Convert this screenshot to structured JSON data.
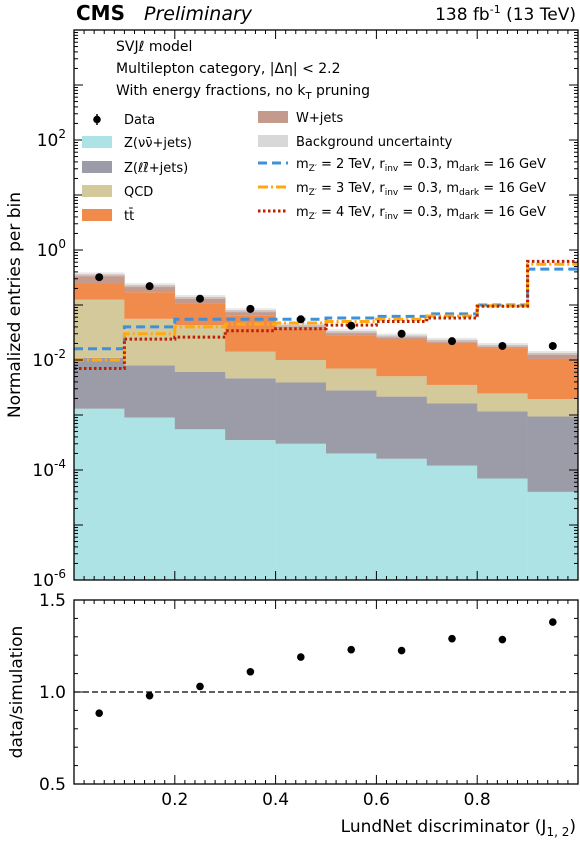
{
  "header": {
    "experiment": "CMS",
    "status": "Preliminary",
    "lumi": "138 fb",
    "lumi_exp": "-1",
    "energy": " (13 TeV)"
  },
  "annotations": [
    "SVJℓ model",
    "Multilepton category, |Δη| < 2.2",
    "With energy fractions, no k",
    "T",
    " pruning"
  ],
  "colors": {
    "znunu": "#aee3e5",
    "zll": "#9c9ca8",
    "qcd": "#d4c99a",
    "ttbar": "#f08b4b",
    "wjets": "#c49a8d",
    "unc": "#d8d8d8",
    "sig2": "#3f90da",
    "sig3": "#ffa90e",
    "sig4": "#bd1f01"
  },
  "legend": {
    "data": "Data",
    "znunu": "Z(νν̄+jets)",
    "zll": "Z(ℓℓ̄+jets)",
    "qcd": "QCD",
    "ttbar": "tt̄",
    "wjets": "W+jets",
    "unc": "Background uncertainty",
    "sig2": "m",
    "sig2_sub": "Z′",
    "sig2_rest": " = 2 TeV, r",
    "sig2_inv": "inv",
    "sig2_rest2": " = 0.3, m",
    "sig2_dark": "dark",
    "sig2_end": " = 16 GeV",
    "sig3": "m",
    "sig3_sub": "Z′",
    "sig3_rest": " = 3 TeV, r",
    "sig3_inv": "inv",
    "sig3_rest2": " = 0.3, m",
    "sig3_dark": "dark",
    "sig3_end": " = 16 GeV",
    "sig4": "m",
    "sig4_sub": "Z′",
    "sig4_rest": " = 4 TeV, r",
    "sig4_inv": "inv",
    "sig4_rest2": " = 0.3, m",
    "sig4_dark": "dark",
    "sig4_end": " = 16 GeV"
  },
  "chart_data": [
    {
      "type": "bar",
      "stacked": true,
      "log_y": true,
      "ylabel": "Normalized entries per bin",
      "ylim": [
        1e-06,
        10000.0
      ],
      "y_ticks": [
        {
          "value": 1e-06,
          "base": "10",
          "exp": "-6"
        },
        {
          "value": 0.0001,
          "base": "10",
          "exp": "-4"
        },
        {
          "value": 0.01,
          "base": "10",
          "exp": "-2"
        },
        {
          "value": 1,
          "base": "10",
          "exp": "0"
        },
        {
          "value": 100,
          "base": "10",
          "exp": "2"
        }
      ],
      "xlim": [
        0,
        1
      ],
      "bin_edges": [
        0,
        0.1,
        0.2,
        0.3,
        0.4,
        0.5,
        0.6,
        0.7,
        0.8,
        0.9,
        1.0
      ],
      "stack_order": [
        "znunu",
        "zll",
        "qcd",
        "ttbar",
        "wjets"
      ],
      "series": [
        {
          "key": "znunu",
          "name": "Z(νν̄+jets)",
          "values": [
            0.0013,
            0.0009,
            0.00055,
            0.00035,
            0.0003,
            0.0002,
            0.00016,
            0.00012,
            7e-05,
            4e-05
          ]
        },
        {
          "key": "zll",
          "name": "Z(ℓℓ̄+jets)",
          "values": [
            0.0096,
            0.0071,
            0.0055,
            0.0043,
            0.0036,
            0.0026,
            0.002,
            0.0015,
            0.0011,
            0.0009
          ]
        },
        {
          "key": "qcd",
          "name": "QCD",
          "values": [
            0.115,
            0.048,
            0.037,
            0.0096,
            0.0061,
            0.0042,
            0.0029,
            0.0019,
            0.0013,
            0.001
          ]
        },
        {
          "key": "ttbar",
          "name": "tt̄",
          "values": [
            0.115,
            0.115,
            0.063,
            0.051,
            0.027,
            0.021,
            0.019,
            0.017,
            0.014,
            0.0085
          ]
        },
        {
          "key": "wjets",
          "name": "W+jets",
          "values": [
            0.12,
            0.059,
            0.034,
            0.015,
            0.0066,
            0.0053,
            0.0038,
            0.0027,
            0.0023,
            0.003
          ]
        }
      ],
      "signals": [
        {
          "key": "sig2",
          "name": "m_Z′ = 2 TeV, r_inv = 0.3, m_dark = 16 GeV",
          "style": "dashed",
          "values": [
            0.016,
            0.04,
            0.055,
            0.055,
            0.055,
            0.058,
            0.062,
            0.069,
            0.1,
            0.45
          ]
        },
        {
          "key": "sig3",
          "name": "m_Z′ = 3 TeV, r_inv = 0.3, m_dark = 16 GeV",
          "style": "dashdot",
          "values": [
            0.01,
            0.03,
            0.04,
            0.045,
            0.047,
            0.05,
            0.055,
            0.063,
            0.097,
            0.55
          ]
        },
        {
          "key": "sig4",
          "name": "m_Z′ = 4 TeV, r_inv = 0.3, m_dark = 16 GeV",
          "style": "dotted",
          "values": [
            0.007,
            0.024,
            0.026,
            0.034,
            0.037,
            0.043,
            0.05,
            0.058,
            0.095,
            0.62
          ]
        }
      ],
      "data": {
        "name": "Data",
        "x": [
          0.05,
          0.15,
          0.25,
          0.35,
          0.45,
          0.55,
          0.65,
          0.75,
          0.85,
          0.95
        ],
        "y": [
          0.32,
          0.22,
          0.13,
          0.085,
          0.055,
          0.042,
          0.03,
          0.022,
          0.018,
          0.018
        ]
      }
    },
    {
      "type": "scatter",
      "ylabel": "data/simulation",
      "xlabel": "LundNet discriminator (J",
      "xlabel_sub": "1, 2",
      "xlabel_end": ")",
      "ylim": [
        0.5,
        1.5
      ],
      "xlim": [
        0,
        1
      ],
      "y_ticks": [
        {
          "value": 0.5,
          "label": "0.5"
        },
        {
          "value": 1.0,
          "label": "1.0"
        },
        {
          "value": 1.5,
          "label": "1.5"
        }
      ],
      "x_ticks": [
        {
          "value": 0.2,
          "label": "0.2"
        },
        {
          "value": 0.4,
          "label": "0.4"
        },
        {
          "value": 0.6,
          "label": "0.6"
        },
        {
          "value": 0.8,
          "label": "0.8"
        }
      ],
      "reference_line": 1.0,
      "x": [
        0.05,
        0.15,
        0.25,
        0.35,
        0.45,
        0.55,
        0.65,
        0.75,
        0.85,
        0.95
      ],
      "y": [
        0.885,
        0.98,
        1.03,
        1.11,
        1.19,
        1.23,
        1.225,
        1.29,
        1.285,
        1.38
      ],
      "yerr": [
        0.008,
        0.008,
        0.01,
        0.012,
        0.012,
        0.012,
        0.012,
        0.012,
        0.012,
        0.015
      ]
    }
  ]
}
